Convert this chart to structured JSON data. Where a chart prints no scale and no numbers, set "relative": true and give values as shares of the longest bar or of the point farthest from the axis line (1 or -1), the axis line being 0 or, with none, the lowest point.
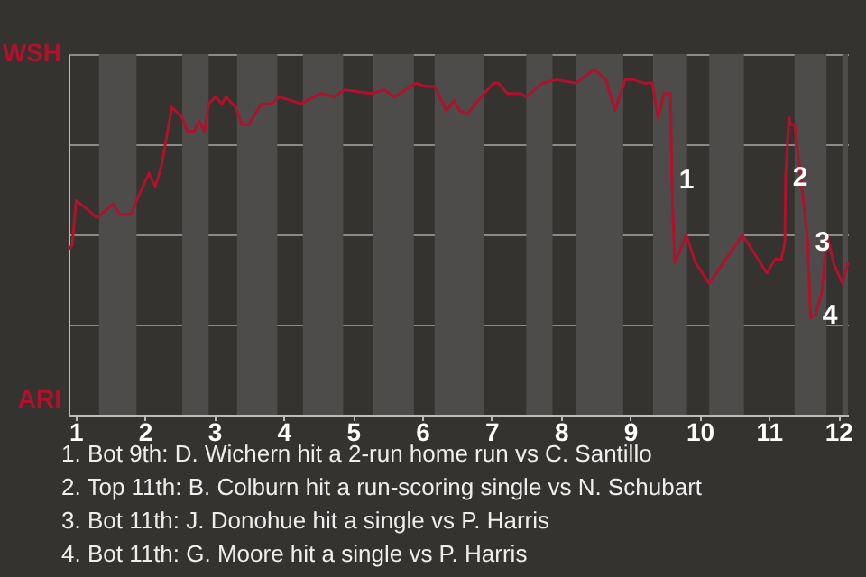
{
  "chart_data": {
    "type": "line",
    "relative": true,
    "x": [
      0.9,
      0.95,
      1.01,
      1.14,
      1.31,
      1.54,
      1.64,
      1.8,
      1.88,
      2.06,
      2.15,
      2.24,
      2.39,
      2.54,
      2.61,
      2.71,
      2.78,
      2.86,
      2.92,
      3.02,
      3.11,
      3.17,
      3.31,
      3.4,
      3.5,
      3.68,
      3.83,
      3.94,
      4.25,
      4.54,
      4.73,
      4.88,
      5.26,
      5.45,
      5.6,
      5.91,
      6.05,
      6.18,
      6.35,
      6.46,
      6.54,
      6.65,
      6.89,
      7.03,
      7.1,
      7.23,
      7.41,
      7.5,
      7.73,
      7.94,
      8.22,
      8.48,
      8.65,
      8.78,
      8.93,
      9.05,
      9.19,
      9.32,
      9.4,
      9.49,
      9.58,
      9.6,
      9.64,
      9.81,
      9.94,
      10.14,
      10.62,
      10.97,
      11.09,
      11.18,
      11.23,
      11.24,
      11.29,
      11.31,
      11.37,
      11.47,
      11.56,
      11.6,
      11.67,
      11.76,
      11.84,
      11.93,
      12.06,
      12.14
    ],
    "series": [
      {
        "color": "#b0112b",
        "values": [
          0.48,
          0.49,
          0.62,
          0.6,
          0.57,
          0.61,
          0.58,
          0.58,
          0.62,
          0.7,
          0.66,
          0.72,
          0.89,
          0.86,
          0.82,
          0.82,
          0.85,
          0.82,
          0.9,
          0.92,
          0.9,
          0.92,
          0.89,
          0.84,
          0.84,
          0.9,
          0.9,
          0.92,
          0.9,
          0.93,
          0.92,
          0.94,
          0.93,
          0.94,
          0.92,
          0.96,
          0.95,
          0.95,
          0.88,
          0.91,
          0.88,
          0.87,
          0.93,
          0.96,
          0.96,
          0.93,
          0.93,
          0.92,
          0.96,
          0.97,
          0.96,
          1,
          0.97,
          0.88,
          0.97,
          0.97,
          0.96,
          0.96,
          0.86,
          0.93,
          0.93,
          0.68,
          0.44,
          0.52,
          0.44,
          0.38,
          0.52,
          0.41,
          0.45,
          0.45,
          0.5,
          0.69,
          0.86,
          0.84,
          0.84,
          0.67,
          0.5,
          0.28,
          0.29,
          0.35,
          0.52,
          0.44,
          0.38,
          0.44
        ]
      }
    ],
    "xlim": [
      0.9,
      12.14
    ],
    "xticks": [
      1,
      2,
      3,
      4,
      5,
      6,
      7,
      8,
      9,
      10,
      11,
      12
    ],
    "grid": "y",
    "bands": [
      {
        "axis": "x",
        "from": 1.34,
        "to": 1.88,
        "color": "#4d4c4a"
      },
      {
        "axis": "x",
        "from": 2.54,
        "to": 2.92,
        "color": "#4d4c4a"
      },
      {
        "axis": "x",
        "from": 3.33,
        "to": 3.91,
        "color": "#4d4c4a"
      },
      {
        "axis": "x",
        "from": 4.28,
        "to": 4.86,
        "color": "#4d4c4a"
      },
      {
        "axis": "x",
        "from": 5.29,
        "to": 5.88,
        "color": "#4d4c4a"
      },
      {
        "axis": "x",
        "from": 6.18,
        "to": 6.89,
        "color": "#4d4c4a"
      },
      {
        "axis": "x",
        "from": 7.5,
        "to": 7.88,
        "color": "#4d4c4a"
      },
      {
        "axis": "x",
        "from": 8.22,
        "to": 8.9,
        "color": "#4d4c4a"
      },
      {
        "axis": "x",
        "from": 9.33,
        "to": 9.82,
        "color": "#4d4c4a"
      },
      {
        "axis": "x",
        "from": 10.14,
        "to": 10.64,
        "color": "#4d4c4a"
      },
      {
        "axis": "x",
        "from": 11.37,
        "to": 11.83,
        "color": "#4d4c4a"
      },
      {
        "axis": "x",
        "from": 12.06,
        "to": 12.14,
        "color": "#4d4c4a"
      }
    ],
    "annotations": [
      {
        "text": "1",
        "x": 9.6,
        "y": 0.68
      },
      {
        "text": "2",
        "x": 11.24,
        "y": 0.69
      },
      {
        "text": "3",
        "x": 11.56,
        "y": 0.5
      },
      {
        "text": "4",
        "x": 11.67,
        "y": 0.29
      },
      "WSH",
      "ARI",
      "1. Bot 9th: D. Wichern hit a 2-run home run vs C. Santillo",
      "2. Top 11th: B. Colburn hit a run-scoring single vs N. Schubart",
      "3. Bot 11th: J. Donohue hit a single vs P. Harris",
      "4. Bot 11th: G. Moore hit a single vs P. Harris"
    ]
  }
}
